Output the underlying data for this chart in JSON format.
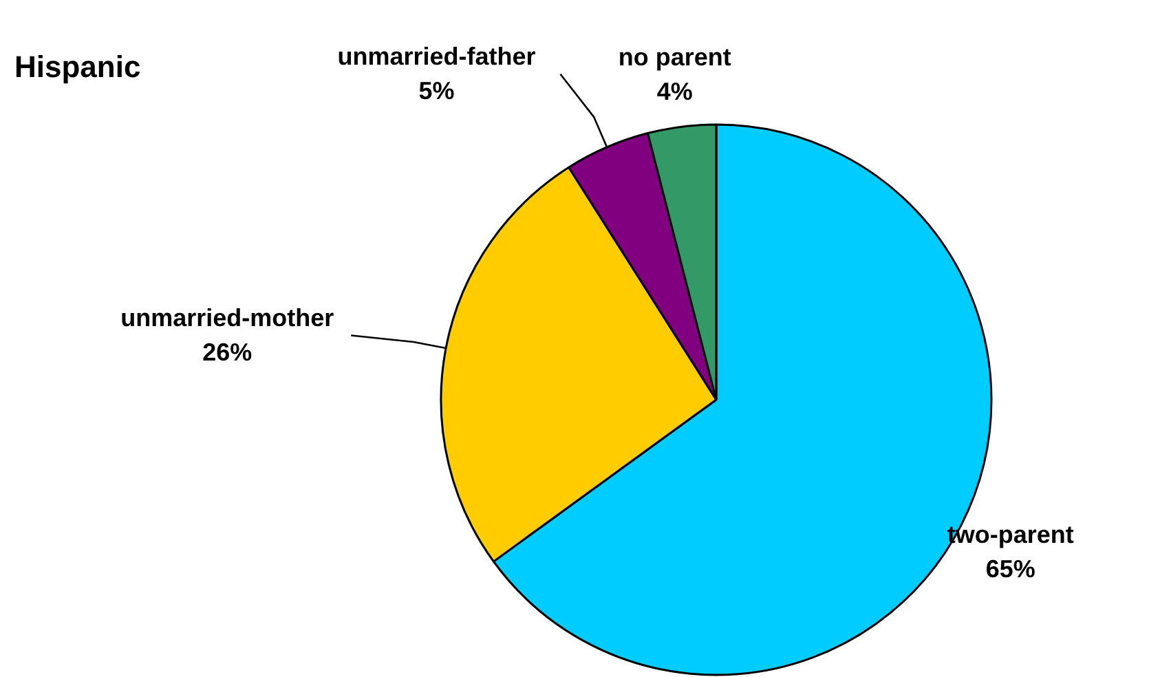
{
  "chart_data": {
    "type": "pie",
    "title": "Hispanic",
    "categories": [
      "two-parent",
      "unmarried-mother",
      "unmarried-father",
      "no parent"
    ],
    "values": [
      65,
      26,
      5,
      4
    ],
    "value_labels": [
      "65%",
      "26%",
      "5%",
      "4%"
    ],
    "colors": [
      "#00ccff",
      "#ffcc00",
      "#800080",
      "#339966"
    ]
  }
}
